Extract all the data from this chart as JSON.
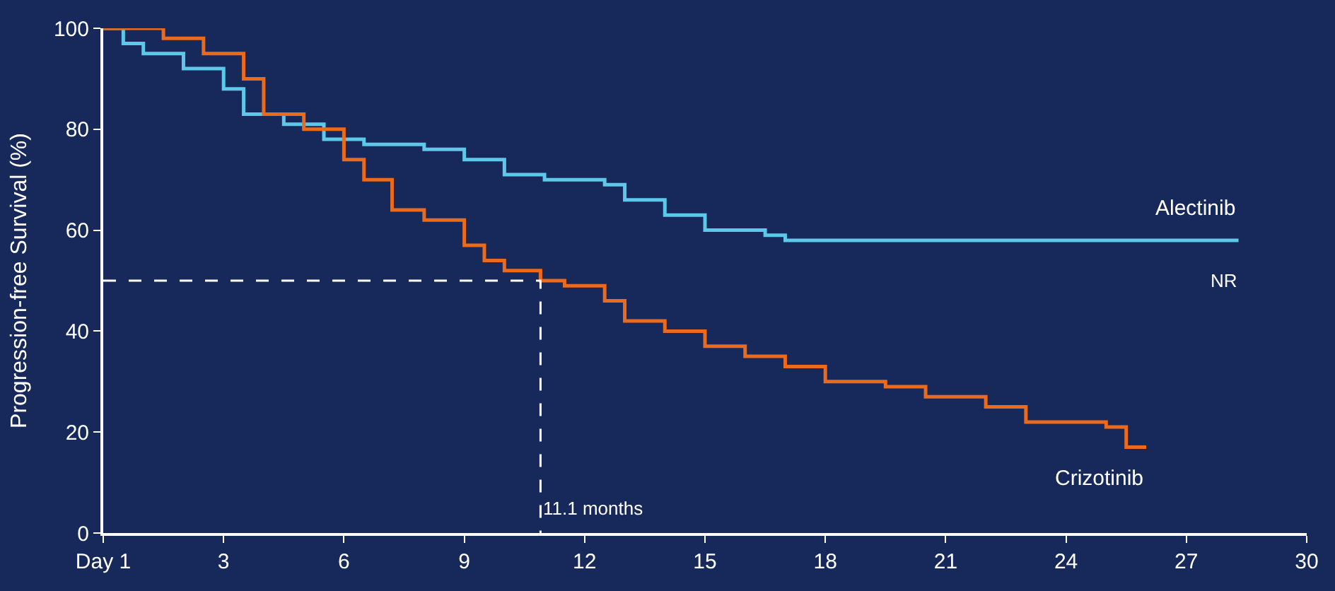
{
  "chart_data": {
    "type": "step",
    "ylabel": "Progression-free Survival (%)",
    "xlim": [
      0,
      30
    ],
    "xticks": [
      {
        "value": 0,
        "label": "Day 1"
      },
      3,
      6,
      9,
      12,
      15,
      18,
      21,
      24,
      27,
      30
    ],
    "ylim": [
      0,
      100
    ],
    "yticks": [
      0,
      20,
      40,
      60,
      80,
      100
    ],
    "grid": false,
    "legend": false,
    "series": [
      {
        "name": "Alectinib",
        "color": "#5ec8ea",
        "x": [
          0,
          0.5,
          1,
          2,
          3,
          3.5,
          4.5,
          5.5,
          6.5,
          8,
          9,
          10,
          11,
          12.5,
          13,
          14,
          15,
          16.5,
          17,
          28.3
        ],
        "values": [
          100,
          97,
          95,
          92,
          88,
          83,
          81,
          78,
          77,
          76,
          74,
          71,
          70,
          69,
          66,
          63,
          60,
          59,
          58,
          58
        ]
      },
      {
        "name": "Crizotinib",
        "color": "#ea6a1e",
        "x": [
          0,
          1,
          1.5,
          2.5,
          3.5,
          4,
          5,
          6,
          6.5,
          7.2,
          8,
          9,
          9.5,
          10,
          10.9,
          11.5,
          12.5,
          13,
          14,
          15,
          16,
          17,
          18,
          19.5,
          20.5,
          22,
          23,
          25,
          25.5,
          26
        ],
        "values": [
          100,
          100,
          98,
          95,
          90,
          83,
          80,
          74,
          70,
          64,
          62,
          57,
          54,
          52,
          50,
          49,
          46,
          42,
          40,
          37,
          35,
          33,
          30,
          29,
          27,
          25,
          22,
          21,
          17,
          17
        ]
      },
      {
        "type": "line",
        "color": "#ffffff",
        "line_style": "dashed",
        "x": [
          0,
          10.9,
          10.9
        ],
        "values": [
          50,
          50,
          0
        ]
      }
    ],
    "annotations": [
      {
        "text": "11.1 months",
        "x": 10.9,
        "y": 5
      },
      "NR"
    ]
  }
}
